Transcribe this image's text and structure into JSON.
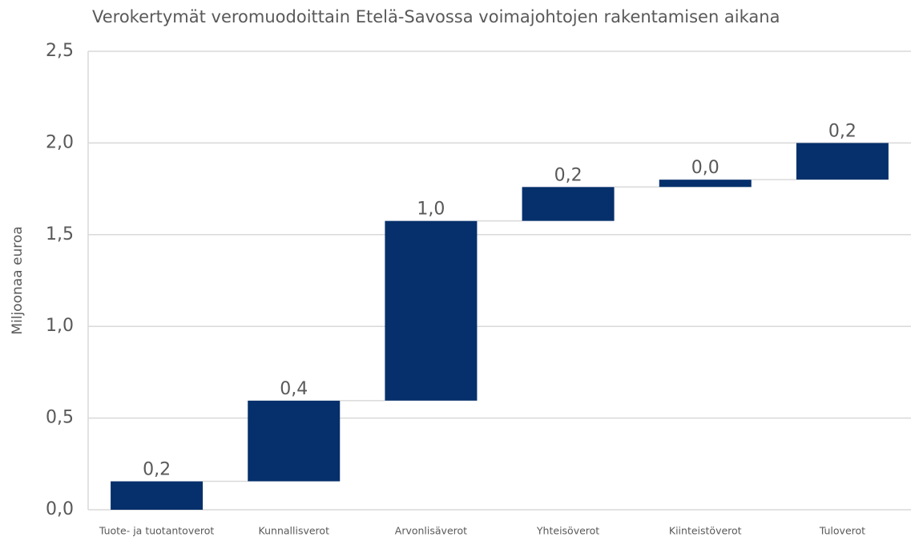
{
  "chart_data": {
    "type": "waterfall",
    "title": "Verokertymät veromuodoittain Etelä-Savossa voimajohtojen rakentamisen aikana",
    "y_label": "Miljoonaa euroa",
    "categories": [
      "Tuote- ja tuotantoverot",
      "Kunnallisverot",
      "Arvonlisäverot",
      "Yhteisöverot",
      "Kiinteistöverot",
      "Tuloverot"
    ],
    "values": [
      0.155,
      0.44,
      0.98,
      0.185,
      0.04,
      0.2
    ],
    "value_labels": [
      "0,2",
      "0,4",
      "1,0",
      "0,2",
      "0,0",
      "0,2"
    ],
    "color": "#06306b",
    "ylim": [
      0,
      2.5
    ],
    "yticks": [
      {
        "value": 0,
        "label": "0,0"
      },
      {
        "value": 0.5,
        "label": "0,5"
      },
      {
        "value": 1,
        "label": "1,0"
      },
      {
        "value": 1.5,
        "label": "1,5"
      },
      {
        "value": 2,
        "label": "2,0"
      },
      {
        "value": 2.5,
        "label": "2,5"
      }
    ],
    "grid": true
  }
}
